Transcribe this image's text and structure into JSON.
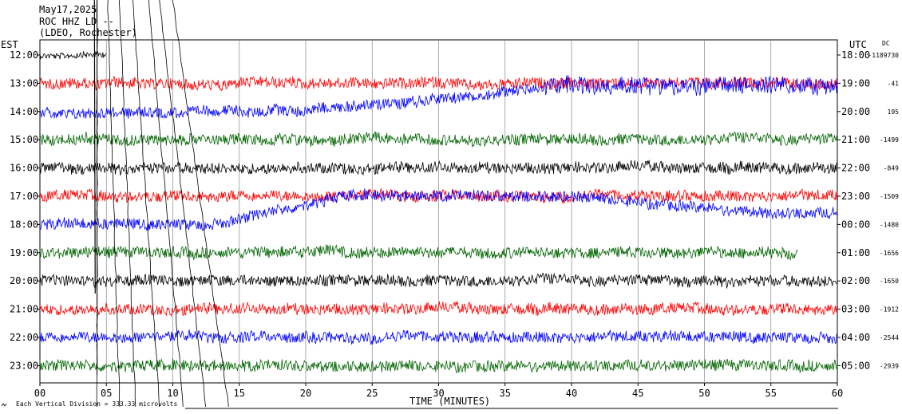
{
  "header": {
    "date": "May17,2025",
    "station": "ROC HHZ LD --",
    "network": "(LDEO, Rochester)"
  },
  "chart_data": {
    "type": "line",
    "title": "May17,2025",
    "left_axis_label": "EST",
    "right_axis_label": "UTC",
    "dc_label": "DC",
    "xlabel": "TIME (MINUTES)",
    "xlim": [
      0,
      60
    ],
    "x_ticks": [
      "00",
      "05",
      "10",
      "15",
      "20",
      "25",
      "30",
      "35",
      "40",
      "45",
      "50",
      "55",
      "60"
    ],
    "grid": true,
    "footer_note": "Each Vertical Division =  333.33 microvolts",
    "series_colors": [
      "#000000",
      "#ff0000",
      "#0000ff",
      "#006400"
    ],
    "rows": [
      {
        "est": "12:00",
        "utc": "18:00",
        "dc": "-1189730",
        "color": "#000000",
        "end_minute": 5
      },
      {
        "est": "13:00",
        "utc": "19:00",
        "dc": "-41",
        "color": "#ff0000",
        "end_minute": 60
      },
      {
        "est": "14:00",
        "utc": "20:00",
        "dc": "195",
        "color": "#0000ff",
        "end_minute": 60
      },
      {
        "est": "15:00",
        "utc": "21:00",
        "dc": "-1499",
        "color": "#006400",
        "end_minute": 60
      },
      {
        "est": "16:00",
        "utc": "22:00",
        "dc": "-849",
        "color": "#000000",
        "end_minute": 60
      },
      {
        "est": "17:00",
        "utc": "23:00",
        "dc": "-1509",
        "color": "#ff0000",
        "end_minute": 60
      },
      {
        "est": "18:00",
        "utc": "00:00",
        "dc": "-1480",
        "color": "#0000ff",
        "end_minute": 60
      },
      {
        "est": "19:00",
        "utc": "01:00",
        "dc": "-1656",
        "color": "#006400",
        "end_minute": 57
      },
      {
        "est": "20:00",
        "utc": "02:00",
        "dc": "-1650",
        "color": "#000000",
        "end_minute": 60
      },
      {
        "est": "21:00",
        "utc": "03:00",
        "dc": "-1912",
        "color": "#ff0000",
        "end_minute": 60
      },
      {
        "est": "22:00",
        "utc": "04:00",
        "dc": "-2544",
        "color": "#0000ff",
        "end_minute": 60
      },
      {
        "est": "23:00",
        "utc": "05:00",
        "dc": "-2939",
        "color": "#006400",
        "end_minute": 60
      }
    ]
  }
}
